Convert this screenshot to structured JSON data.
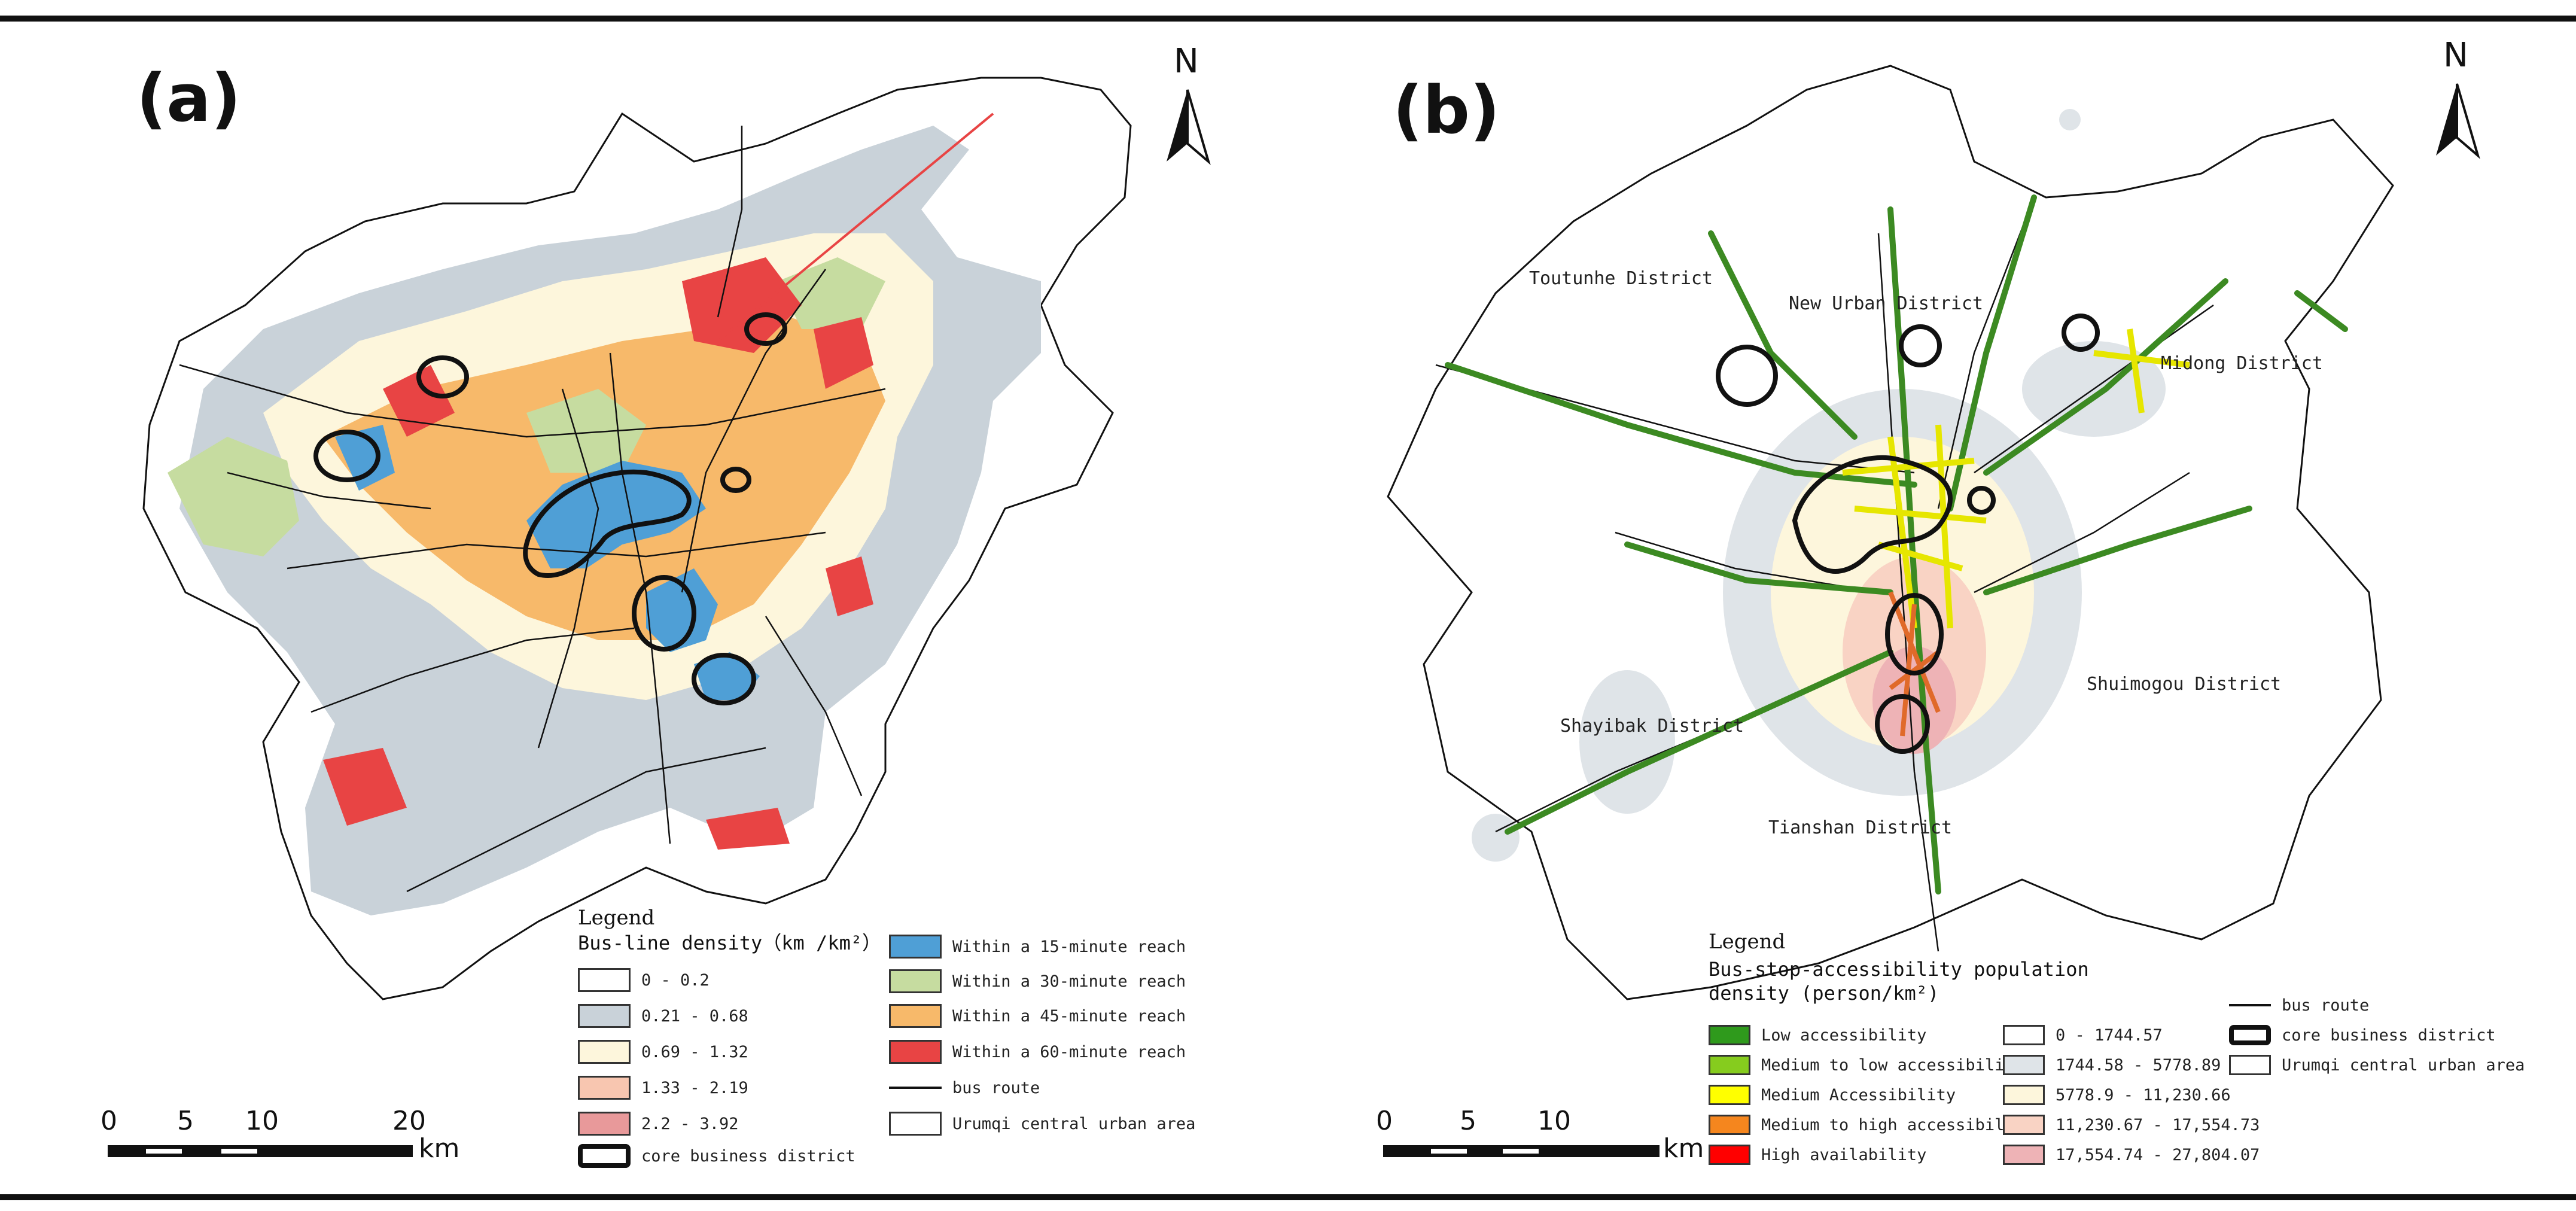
{
  "panels": [
    {
      "label": "(a)",
      "north": "N",
      "legend": {
        "title": "Legend",
        "subtitle": "Bus-line density（km /km²）",
        "density_items": [
          {
            "label": "0 - 0.2",
            "color": "#ffffff"
          },
          {
            "label": "0.21 - 0.68",
            "color": "#c9d2d9"
          },
          {
            "label": "0.69 - 1.32",
            "color": "#fdf6dc"
          },
          {
            "label": "1.33 - 2.19",
            "color": "#f8c6b0"
          },
          {
            "label": "2.2 - 3.92",
            "color": "#e8999a"
          }
        ],
        "reach_items": [
          {
            "label": "Within a 15-minute reach",
            "color": "#4f9fd6"
          },
          {
            "label": "Within a 30-minute reach",
            "color": "#c6dca0"
          },
          {
            "label": "Within a 45-minute reach",
            "color": "#f7b96a"
          },
          {
            "label": "Within a 60-minute reach",
            "color": "#e84444"
          }
        ],
        "bus_route": "bus route",
        "urban_area": "Urumqi central urban area",
        "cbd": "core business district"
      },
      "scale": {
        "ticks": [
          "0",
          "5",
          "10",
          "20"
        ],
        "unit": "km"
      }
    },
    {
      "label": "(b)",
      "north": "N",
      "districts": [
        "Toutunhe District",
        "New Urban District",
        "Midong District",
        "Shuimogou District",
        "Shayibak District",
        "Tianshan District"
      ],
      "legend": {
        "title": "Legend",
        "subtitle_line1": "Bus-stop-accessibility population",
        "subtitle_line2": "density (person/km²)",
        "accessibility_items": [
          {
            "label": "Low accessibility",
            "color": "#2f9a1c"
          },
          {
            "label": "Medium to low accessibility",
            "color": "#86cc1e"
          },
          {
            "label": "Medium Accessibility",
            "color": "#ffff00"
          },
          {
            "label": "Medium to high accessibility",
            "color": "#f5861e"
          },
          {
            "label": "High availability",
            "color": "#ff0000"
          }
        ],
        "density_items": [
          {
            "label": "0 - 1744.57",
            "color": "#ffffff"
          },
          {
            "label": "1744.58 - 5778.89",
            "color": "#dfe4e8"
          },
          {
            "label": "5778.9 - 11,230.66",
            "color": "#fdf6dc"
          },
          {
            "label": "11,230.67 - 17,554.73",
            "color": "#f9d3c4"
          },
          {
            "label": "17,554.74 - 27,804.07",
            "color": "#eeb3b6"
          }
        ],
        "bus_route": "bus route",
        "cbd": "core business district",
        "urban_area": "Urumqi central urban area"
      },
      "scale": {
        "ticks": [
          "0",
          "5",
          "10"
        ],
        "unit": "km"
      }
    }
  ]
}
